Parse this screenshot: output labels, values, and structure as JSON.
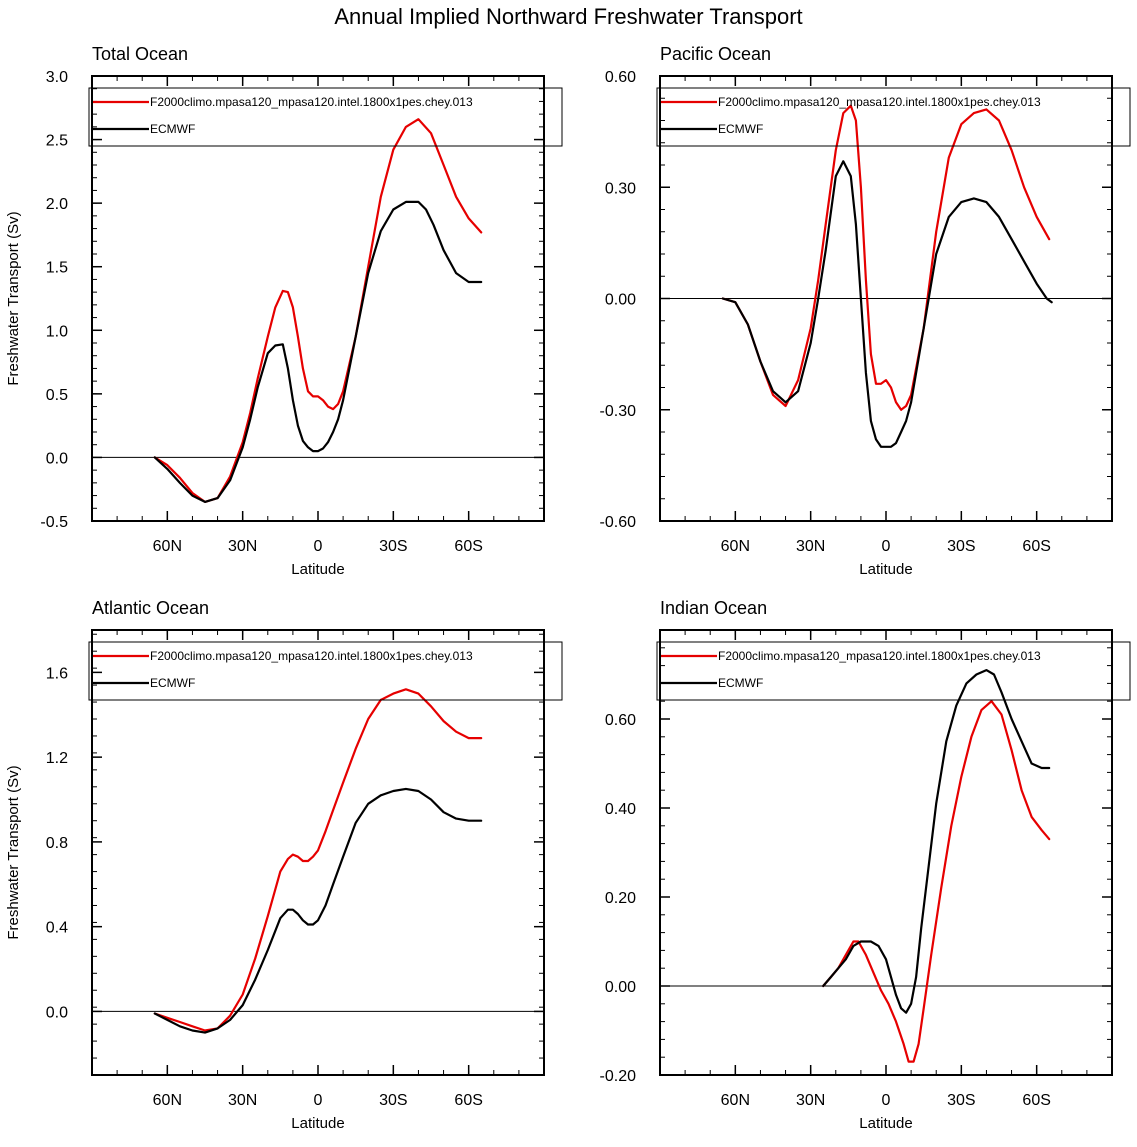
{
  "title": "Annual Implied Northward Freshwater Transport",
  "colors": {
    "model": "#e60000",
    "obs": "#000000"
  },
  "chart_data": [
    {
      "type": "line",
      "title": "Total Ocean",
      "xlabel": "Latitude",
      "ylabel": "Freshwater Transport (Sv)",
      "xlim": [
        -90,
        90
      ],
      "ylim": [
        -0.5,
        3.0
      ],
      "yticks": [
        -0.5,
        0.0,
        0.5,
        1.0,
        1.5,
        2.0,
        2.5,
        3.0
      ],
      "ytick_labels": [
        "-0.5",
        "0.0",
        "0.5",
        "1.0",
        "1.5",
        "2.0",
        "2.5",
        "3.0"
      ],
      "xticks": [
        -60,
        -30,
        0,
        30,
        60
      ],
      "xtick_labels": [
        "60N",
        "30N",
        "0",
        "30S",
        "60S"
      ],
      "legend": [
        "F2000climo.mpasa120_mpasa120.intel.1800x1pes.chey.013",
        "ECMWF"
      ],
      "series": [
        {
          "name": "F2000climo.mpasa120_mpasa120.intel.1800x1pes.chey.013",
          "color": "#e60000",
          "x": [
            -65,
            -60,
            -55,
            -50,
            -45,
            -40,
            -35,
            -30,
            -27,
            -24,
            -20,
            -17,
            -14,
            -12,
            -10,
            -8,
            -6,
            -4,
            -2,
            0,
            2,
            4,
            6,
            8,
            10,
            15,
            20,
            25,
            30,
            35,
            40,
            45,
            50,
            55,
            60,
            65
          ],
          "y": [
            0.0,
            -0.06,
            -0.16,
            -0.28,
            -0.35,
            -0.32,
            -0.15,
            0.12,
            0.35,
            0.62,
            0.95,
            1.18,
            1.31,
            1.3,
            1.18,
            0.95,
            0.7,
            0.52,
            0.48,
            0.48,
            0.45,
            0.4,
            0.38,
            0.42,
            0.52,
            0.95,
            1.5,
            2.05,
            2.42,
            2.6,
            2.66,
            2.55,
            2.3,
            2.05,
            1.88,
            1.77
          ]
        },
        {
          "name": "ECMWF",
          "color": "#000000",
          "x": [
            -65,
            -60,
            -55,
            -50,
            -45,
            -40,
            -35,
            -30,
            -27,
            -24,
            -20,
            -17,
            -14,
            -12,
            -10,
            -8,
            -6,
            -4,
            -2,
            0,
            2,
            4,
            6,
            8,
            10,
            15,
            20,
            25,
            30,
            35,
            40,
            43,
            46,
            50,
            55,
            60,
            65
          ],
          "y": [
            0.0,
            -0.09,
            -0.2,
            -0.3,
            -0.35,
            -0.32,
            -0.18,
            0.08,
            0.3,
            0.55,
            0.82,
            0.88,
            0.89,
            0.7,
            0.45,
            0.25,
            0.13,
            0.08,
            0.05,
            0.05,
            0.07,
            0.12,
            0.2,
            0.3,
            0.45,
            0.95,
            1.45,
            1.78,
            1.95,
            2.01,
            2.01,
            1.95,
            1.83,
            1.63,
            1.45,
            1.38,
            1.38
          ]
        }
      ]
    },
    {
      "type": "line",
      "title": "Pacific Ocean",
      "xlabel": "Latitude",
      "ylabel": "",
      "xlim": [
        -90,
        90
      ],
      "ylim": [
        -0.6,
        0.6
      ],
      "yticks": [
        -0.6,
        -0.3,
        0.0,
        0.3,
        0.6
      ],
      "ytick_labels": [
        "-0.60",
        "-0.30",
        "0.00",
        "0.30",
        "0.60"
      ],
      "xticks": [
        -60,
        -30,
        0,
        30,
        60
      ],
      "xtick_labels": [
        "60N",
        "30N",
        "0",
        "30S",
        "60S"
      ],
      "legend": [
        "F2000climo.mpasa120_mpasa120.intel.1800x1pes.chey.013",
        "ECMWF"
      ],
      "series": [
        {
          "name": "F2000climo.mpasa120_mpasa120.intel.1800x1pes.chey.013",
          "color": "#e60000",
          "x": [
            -65,
            -60,
            -55,
            -50,
            -45,
            -40,
            -35,
            -30,
            -27,
            -24,
            -20,
            -17,
            -14,
            -12,
            -10,
            -8,
            -6,
            -4,
            -2,
            0,
            2,
            4,
            6,
            8,
            10,
            15,
            20,
            25,
            30,
            35,
            40,
            45,
            50,
            55,
            60,
            65
          ],
          "y": [
            0.0,
            -0.01,
            -0.07,
            -0.17,
            -0.26,
            -0.29,
            -0.22,
            -0.08,
            0.05,
            0.2,
            0.4,
            0.5,
            0.52,
            0.48,
            0.3,
            0.05,
            -0.15,
            -0.23,
            -0.23,
            -0.22,
            -0.24,
            -0.28,
            -0.3,
            -0.29,
            -0.26,
            -0.08,
            0.18,
            0.38,
            0.47,
            0.5,
            0.51,
            0.48,
            0.4,
            0.3,
            0.22,
            0.16
          ]
        },
        {
          "name": "ECMWF",
          "color": "#000000",
          "x": [
            -65,
            -60,
            -55,
            -50,
            -45,
            -40,
            -35,
            -30,
            -27,
            -24,
            -20,
            -17,
            -14,
            -12,
            -10,
            -8,
            -6,
            -4,
            -2,
            0,
            2,
            4,
            6,
            8,
            10,
            15,
            20,
            25,
            30,
            35,
            40,
            45,
            50,
            55,
            60,
            64,
            66
          ],
          "y": [
            0.0,
            -0.01,
            -0.07,
            -0.17,
            -0.25,
            -0.28,
            -0.25,
            -0.12,
            0.0,
            0.13,
            0.33,
            0.37,
            0.33,
            0.2,
            0.0,
            -0.2,
            -0.33,
            -0.38,
            -0.4,
            -0.4,
            -0.4,
            -0.39,
            -0.36,
            -0.33,
            -0.28,
            -0.08,
            0.12,
            0.22,
            0.26,
            0.27,
            0.26,
            0.22,
            0.16,
            0.1,
            0.04,
            0.0,
            -0.01
          ]
        }
      ]
    },
    {
      "type": "line",
      "title": "Atlantic Ocean",
      "xlabel": "Latitude",
      "ylabel": "Freshwater Transport (Sv)",
      "xlim": [
        -90,
        90
      ],
      "ylim": [
        -0.3,
        1.8
      ],
      "yticks": [
        0.0,
        0.4,
        0.8,
        1.2,
        1.6
      ],
      "ytick_labels": [
        "0.0",
        "0.4",
        "0.8",
        "1.2",
        "1.6"
      ],
      "xticks": [
        -60,
        -30,
        0,
        30,
        60
      ],
      "xtick_labels": [
        "60N",
        "30N",
        "0",
        "30S",
        "60S"
      ],
      "legend": [
        "F2000climo.mpasa120_mpasa120.intel.1800x1pes.chey.013",
        "ECMWF"
      ],
      "series": [
        {
          "name": "F2000climo.mpasa120_mpasa120.intel.1800x1pes.chey.013",
          "color": "#e60000",
          "x": [
            -65,
            -60,
            -55,
            -50,
            -45,
            -40,
            -35,
            -30,
            -25,
            -20,
            -15,
            -12,
            -10,
            -8,
            -6,
            -4,
            -2,
            0,
            3,
            6,
            10,
            15,
            20,
            25,
            30,
            35,
            40,
            45,
            50,
            55,
            60,
            65
          ],
          "y": [
            -0.01,
            -0.03,
            -0.05,
            -0.07,
            -0.09,
            -0.08,
            -0.02,
            0.08,
            0.25,
            0.45,
            0.66,
            0.72,
            0.74,
            0.73,
            0.71,
            0.71,
            0.73,
            0.76,
            0.85,
            0.95,
            1.08,
            1.24,
            1.38,
            1.47,
            1.5,
            1.52,
            1.5,
            1.44,
            1.37,
            1.32,
            1.29,
            1.29
          ]
        },
        {
          "name": "ECMWF",
          "color": "#000000",
          "x": [
            -65,
            -60,
            -55,
            -50,
            -45,
            -40,
            -35,
            -30,
            -25,
            -20,
            -15,
            -12,
            -10,
            -8,
            -6,
            -4,
            -2,
            0,
            3,
            6,
            10,
            15,
            20,
            25,
            30,
            35,
            40,
            45,
            50,
            55,
            60,
            65
          ],
          "y": [
            -0.01,
            -0.04,
            -0.07,
            -0.09,
            -0.1,
            -0.08,
            -0.04,
            0.03,
            0.15,
            0.29,
            0.44,
            0.48,
            0.48,
            0.46,
            0.43,
            0.41,
            0.41,
            0.43,
            0.5,
            0.6,
            0.73,
            0.89,
            0.98,
            1.02,
            1.04,
            1.05,
            1.04,
            1.0,
            0.94,
            0.91,
            0.9,
            0.9
          ]
        }
      ]
    },
    {
      "type": "line",
      "title": "Indian Ocean",
      "xlabel": "Latitude",
      "ylabel": "",
      "xlim": [
        -90,
        90
      ],
      "ylim": [
        -0.2,
        0.8
      ],
      "yticks": [
        -0.2,
        0.0,
        0.2,
        0.4,
        0.6
      ],
      "ytick_labels": [
        "-0.20",
        "0.00",
        "0.20",
        "0.40",
        "0.60"
      ],
      "xticks": [
        -60,
        -30,
        0,
        30,
        60
      ],
      "xtick_labels": [
        "60N",
        "30N",
        "0",
        "30S",
        "60S"
      ],
      "legend": [
        "F2000climo.mpasa120_mpasa120.intel.1800x1pes.chey.013",
        "ECMWF"
      ],
      "series": [
        {
          "name": "F2000climo.mpasa120_mpasa120.intel.1800x1pes.chey.013",
          "color": "#e60000",
          "x": [
            -25,
            -22,
            -19,
            -16,
            -13,
            -11,
            -8,
            -5,
            -2,
            1,
            4,
            7,
            9,
            11,
            13,
            15,
            18,
            22,
            26,
            30,
            34,
            38,
            42,
            46,
            50,
            54,
            58,
            62,
            65
          ],
          "y": [
            0.0,
            0.02,
            0.04,
            0.07,
            0.1,
            0.1,
            0.07,
            0.03,
            -0.01,
            -0.04,
            -0.08,
            -0.13,
            -0.17,
            -0.17,
            -0.13,
            -0.05,
            0.07,
            0.22,
            0.36,
            0.47,
            0.56,
            0.62,
            0.64,
            0.61,
            0.53,
            0.44,
            0.38,
            0.35,
            0.33
          ]
        },
        {
          "name": "ECMWF",
          "color": "#000000",
          "x": [
            -25,
            -22,
            -19,
            -16,
            -13,
            -10,
            -8,
            -6,
            -3,
            0,
            2,
            4,
            6,
            8,
            10,
            12,
            14,
            17,
            20,
            24,
            28,
            32,
            36,
            40,
            43,
            46,
            50,
            54,
            58,
            62,
            65
          ],
          "y": [
            0.0,
            0.02,
            0.04,
            0.06,
            0.09,
            0.1,
            0.1,
            0.1,
            0.09,
            0.06,
            0.02,
            -0.02,
            -0.05,
            -0.06,
            -0.04,
            0.02,
            0.13,
            0.27,
            0.41,
            0.55,
            0.63,
            0.68,
            0.7,
            0.71,
            0.7,
            0.66,
            0.6,
            0.55,
            0.5,
            0.49,
            0.49
          ]
        }
      ]
    }
  ]
}
